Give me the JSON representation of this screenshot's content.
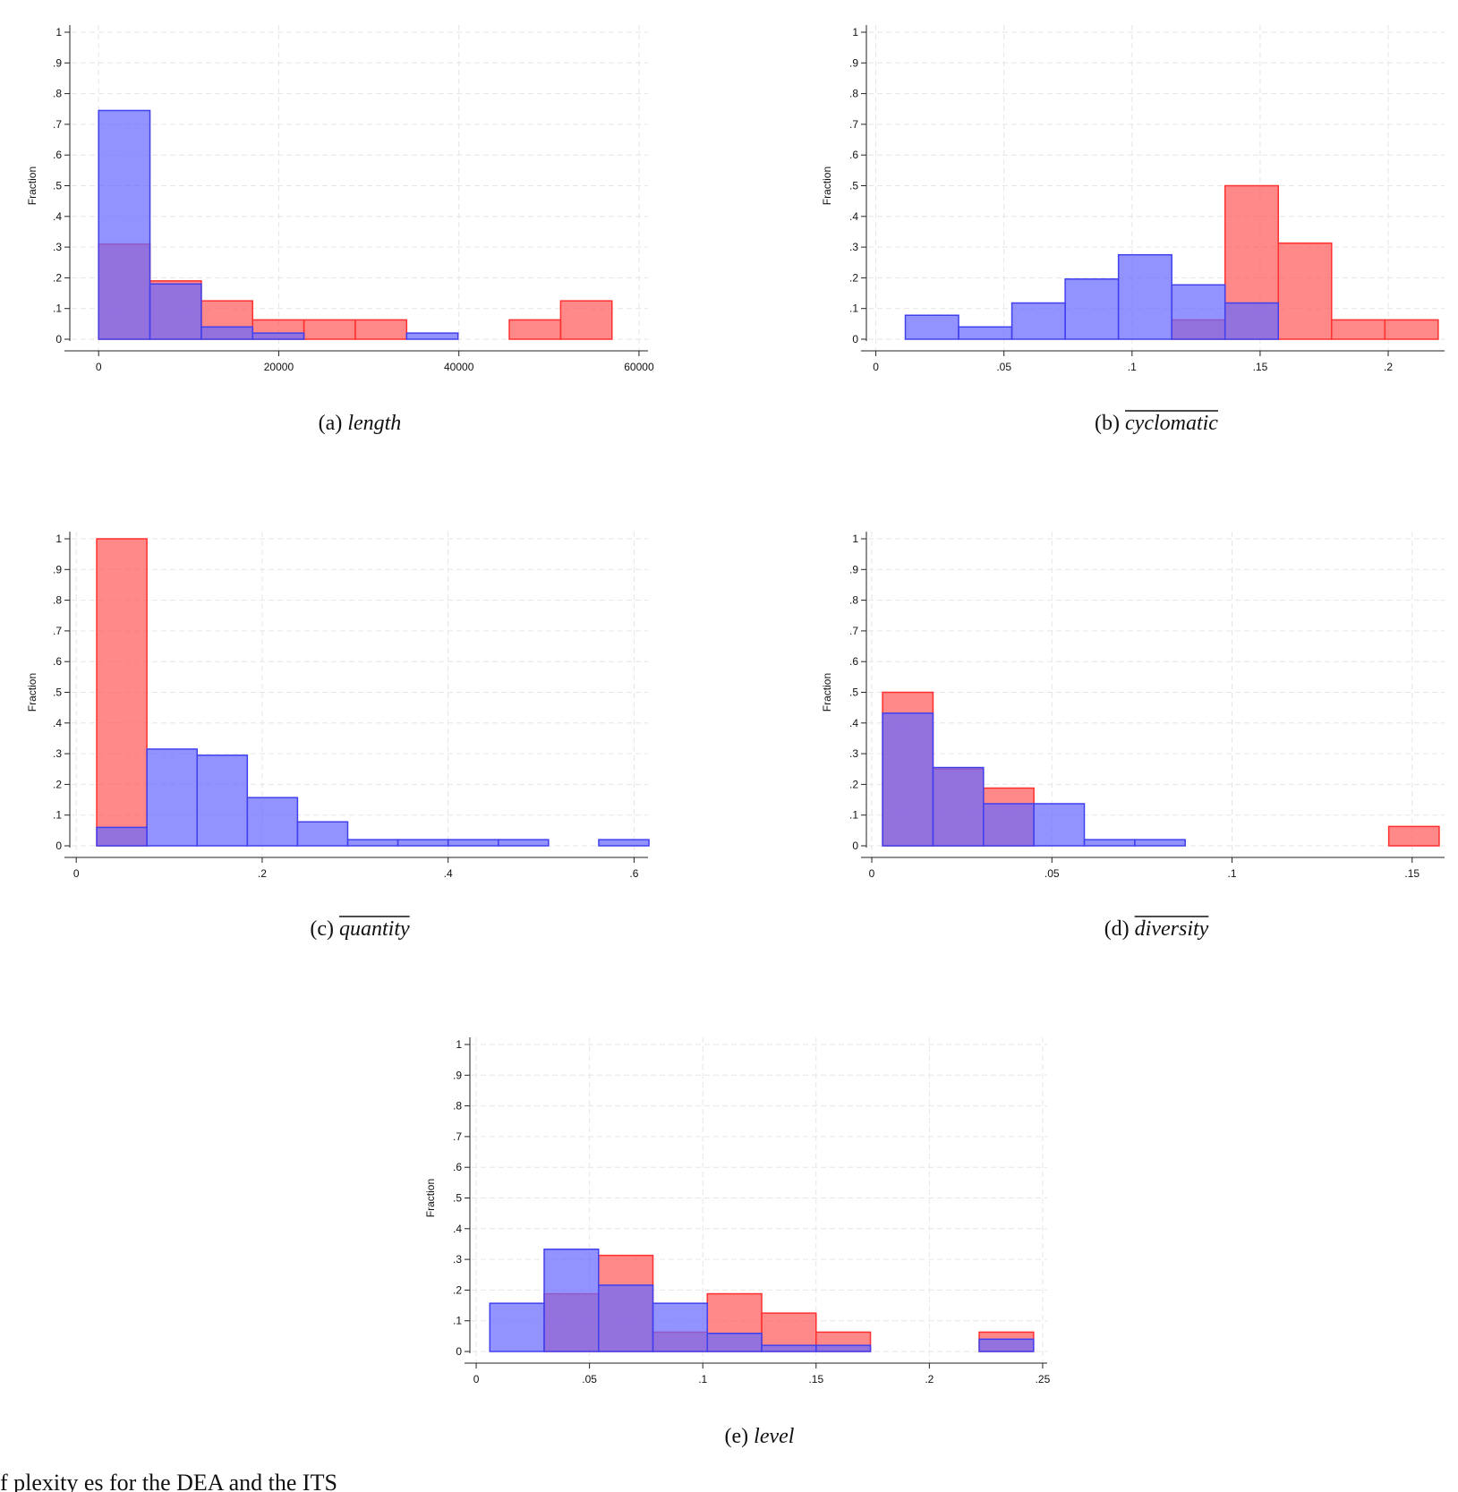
{
  "colors": {
    "red": "#ff5a5a",
    "blue": "#6a6aff",
    "red_edge": "#ff3030",
    "blue_edge": "#4040ee"
  },
  "footer_fragment": "f     plexity    es for the DEA and the ITS",
  "chart_data": [
    {
      "type": "bar",
      "caption_prefix": "(a) ",
      "caption_var": "length",
      "caption_overline": false,
      "ylabel": "Fraction",
      "xlabel": "",
      "ylim": [
        0,
        1
      ],
      "xlim": [
        -3000,
        61000
      ],
      "yticks": [
        "0",
        ".1",
        ".2",
        ".3",
        ".4",
        ".5",
        ".6",
        ".7",
        ".8",
        ".9",
        "1"
      ],
      "xticks": [
        {
          "v": 0,
          "label": "0"
        },
        {
          "v": 20000,
          "label": "20000"
        },
        {
          "v": 40000,
          "label": "40000"
        },
        {
          "v": 60000,
          "label": "60000"
        }
      ],
      "grid": true,
      "series": [
        {
          "color": "red",
          "bins": [
            {
              "x0": 0,
              "x1": 5700,
              "y": 0.31
            },
            {
              "x0": 5700,
              "x1": 11400,
              "y": 0.19
            },
            {
              "x0": 11400,
              "x1": 17100,
              "y": 0.125
            },
            {
              "x0": 17100,
              "x1": 22800,
              "y": 0.063
            },
            {
              "x0": 22800,
              "x1": 28500,
              "y": 0.063
            },
            {
              "x0": 28500,
              "x1": 34200,
              "y": 0.063
            },
            {
              "x0": 45600,
              "x1": 51300,
              "y": 0.063
            },
            {
              "x0": 51300,
              "x1": 57000,
              "y": 0.125
            }
          ]
        },
        {
          "color": "blue",
          "bins": [
            {
              "x0": 0,
              "x1": 5700,
              "y": 0.745
            },
            {
              "x0": 5700,
              "x1": 11400,
              "y": 0.18
            },
            {
              "x0": 11400,
              "x1": 17100,
              "y": 0.04
            },
            {
              "x0": 17100,
              "x1": 22800,
              "y": 0.02
            },
            {
              "x0": 34200,
              "x1": 39900,
              "y": 0.02
            }
          ]
        }
      ]
    },
    {
      "type": "bar",
      "caption_prefix": "(b) ",
      "caption_var": "cyclomatic",
      "caption_overline": true,
      "ylabel": "Fraction",
      "xlabel": "",
      "ylim": [
        0,
        1
      ],
      "xlim": [
        -0.003,
        0.222
      ],
      "yticks": [
        "0",
        ".1",
        ".2",
        ".3",
        ".4",
        ".5",
        ".6",
        ".7",
        ".8",
        ".9",
        "1"
      ],
      "xticks": [
        {
          "v": 0,
          "label": "0"
        },
        {
          "v": 0.05,
          "label": ".05"
        },
        {
          "v": 0.1,
          "label": ".1"
        },
        {
          "v": 0.15,
          "label": ".15"
        },
        {
          "v": 0.2,
          "label": ".2"
        }
      ],
      "grid": true,
      "series": [
        {
          "color": "red",
          "bins": [
            {
              "x0": 0.1155,
              "x1": 0.1363,
              "y": 0.063
            },
            {
              "x0": 0.1363,
              "x1": 0.1571,
              "y": 0.5
            },
            {
              "x0": 0.1571,
              "x1": 0.1779,
              "y": 0.313
            },
            {
              "x0": 0.1779,
              "x1": 0.1987,
              "y": 0.063
            },
            {
              "x0": 0.1987,
              "x1": 0.2195,
              "y": 0.063
            }
          ]
        },
        {
          "color": "blue",
          "bins": [
            {
              "x0": 0.0115,
              "x1": 0.0323,
              "y": 0.078
            },
            {
              "x0": 0.0323,
              "x1": 0.0531,
              "y": 0.04
            },
            {
              "x0": 0.0531,
              "x1": 0.0739,
              "y": 0.118
            },
            {
              "x0": 0.0739,
              "x1": 0.0947,
              "y": 0.196
            },
            {
              "x0": 0.0947,
              "x1": 0.1155,
              "y": 0.275
            },
            {
              "x0": 0.1155,
              "x1": 0.1363,
              "y": 0.177
            },
            {
              "x0": 0.1363,
              "x1": 0.1571,
              "y": 0.118
            }
          ]
        }
      ]
    },
    {
      "type": "bar",
      "caption_prefix": "(c) ",
      "caption_var": "quantity",
      "caption_overline": true,
      "ylabel": "Fraction",
      "xlabel": "",
      "ylim": [
        0,
        1
      ],
      "xlim": [
        -0.005,
        0.615
      ],
      "yticks": [
        "0",
        ".1",
        ".2",
        ".3",
        ".4",
        ".5",
        ".6",
        ".7",
        ".8",
        ".9",
        "1"
      ],
      "xticks": [
        {
          "v": 0,
          "label": "0"
        },
        {
          "v": 0.2,
          "label": ".2"
        },
        {
          "v": 0.4,
          "label": ".4"
        },
        {
          "v": 0.6,
          "label": ".6"
        }
      ],
      "grid": true,
      "series": [
        {
          "color": "red",
          "bins": [
            {
              "x0": 0.022,
              "x1": 0.076,
              "y": 1.0
            }
          ]
        },
        {
          "color": "blue",
          "bins": [
            {
              "x0": 0.022,
              "x1": 0.076,
              "y": 0.06
            },
            {
              "x0": 0.076,
              "x1": 0.13,
              "y": 0.315
            },
            {
              "x0": 0.13,
              "x1": 0.184,
              "y": 0.295
            },
            {
              "x0": 0.184,
              "x1": 0.238,
              "y": 0.157
            },
            {
              "x0": 0.238,
              "x1": 0.292,
              "y": 0.078
            },
            {
              "x0": 0.292,
              "x1": 0.346,
              "y": 0.02
            },
            {
              "x0": 0.346,
              "x1": 0.4,
              "y": 0.02
            },
            {
              "x0": 0.4,
              "x1": 0.454,
              "y": 0.02
            },
            {
              "x0": 0.454,
              "x1": 0.508,
              "y": 0.02
            },
            {
              "x0": 0.562,
              "x1": 0.616,
              "y": 0.02
            }
          ]
        }
      ]
    },
    {
      "type": "bar",
      "caption_prefix": "(d) ",
      "caption_var": "diversity",
      "caption_overline": true,
      "ylabel": "Fraction",
      "xlabel": "",
      "ylim": [
        0,
        1
      ],
      "xlim": [
        -0.001,
        0.159
      ],
      "yticks": [
        "0",
        ".1",
        ".2",
        ".3",
        ".4",
        ".5",
        ".6",
        ".7",
        ".8",
        ".9",
        "1"
      ],
      "xticks": [
        {
          "v": 0,
          "label": "0"
        },
        {
          "v": 0.05,
          "label": ".05"
        },
        {
          "v": 0.1,
          "label": ".1"
        },
        {
          "v": 0.15,
          "label": ".15"
        }
      ],
      "grid": true,
      "series": [
        {
          "color": "red",
          "bins": [
            {
              "x0": 0.003,
              "x1": 0.017,
              "y": 0.5
            },
            {
              "x0": 0.017,
              "x1": 0.031,
              "y": 0.25
            },
            {
              "x0": 0.031,
              "x1": 0.045,
              "y": 0.188
            },
            {
              "x0": 0.1435,
              "x1": 0.1575,
              "y": 0.063
            }
          ]
        },
        {
          "color": "blue",
          "bins": [
            {
              "x0": 0.003,
              "x1": 0.017,
              "y": 0.432
            },
            {
              "x0": 0.017,
              "x1": 0.031,
              "y": 0.255
            },
            {
              "x0": 0.031,
              "x1": 0.045,
              "y": 0.137
            },
            {
              "x0": 0.045,
              "x1": 0.059,
              "y": 0.137
            },
            {
              "x0": 0.059,
              "x1": 0.073,
              "y": 0.02
            },
            {
              "x0": 0.073,
              "x1": 0.087,
              "y": 0.02
            }
          ]
        }
      ]
    },
    {
      "type": "bar",
      "caption_prefix": "(e) ",
      "caption_var": "level",
      "caption_overline": false,
      "ylabel": "Fraction",
      "xlabel": "",
      "ylim": [
        0,
        1
      ],
      "xlim": [
        -0.002,
        0.252
      ],
      "yticks": [
        "0",
        ".1",
        ".2",
        ".3",
        ".4",
        ".5",
        ".6",
        ".7",
        ".8",
        ".9",
        "1"
      ],
      "xticks": [
        {
          "v": 0,
          "label": "0"
        },
        {
          "v": 0.05,
          "label": ".05"
        },
        {
          "v": 0.1,
          "label": ".1"
        },
        {
          "v": 0.15,
          "label": ".15"
        },
        {
          "v": 0.2,
          "label": ".2"
        },
        {
          "v": 0.25,
          "label": ".25"
        }
      ],
      "grid": true,
      "series": [
        {
          "color": "red",
          "bins": [
            {
              "x0": 0.03,
              "x1": 0.054,
              "y": 0.188
            },
            {
              "x0": 0.054,
              "x1": 0.078,
              "y": 0.313
            },
            {
              "x0": 0.078,
              "x1": 0.102,
              "y": 0.063
            },
            {
              "x0": 0.102,
              "x1": 0.126,
              "y": 0.188
            },
            {
              "x0": 0.126,
              "x1": 0.15,
              "y": 0.125
            },
            {
              "x0": 0.15,
              "x1": 0.174,
              "y": 0.063
            },
            {
              "x0": 0.222,
              "x1": 0.246,
              "y": 0.063
            }
          ]
        },
        {
          "color": "blue",
          "bins": [
            {
              "x0": 0.006,
              "x1": 0.03,
              "y": 0.157
            },
            {
              "x0": 0.03,
              "x1": 0.054,
              "y": 0.333
            },
            {
              "x0": 0.054,
              "x1": 0.078,
              "y": 0.216
            },
            {
              "x0": 0.078,
              "x1": 0.102,
              "y": 0.157
            },
            {
              "x0": 0.102,
              "x1": 0.126,
              "y": 0.059
            },
            {
              "x0": 0.126,
              "x1": 0.15,
              "y": 0.02
            },
            {
              "x0": 0.15,
              "x1": 0.174,
              "y": 0.02
            },
            {
              "x0": 0.222,
              "x1": 0.246,
              "y": 0.04
            }
          ]
        }
      ]
    }
  ]
}
